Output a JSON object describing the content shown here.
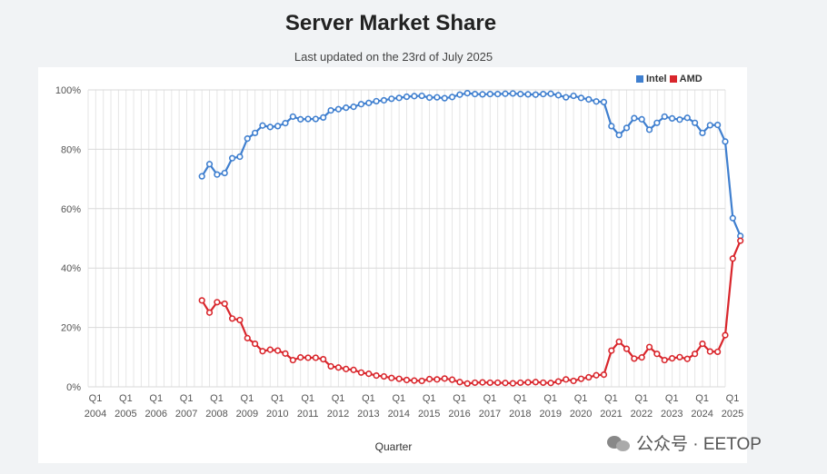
{
  "chart_data": {
    "type": "line",
    "title": "Server Market Share",
    "subtitle": "Last updated on the 23rd of July 2025",
    "xlabel": "Quarter",
    "ylabel": "",
    "ylim": [
      0,
      100
    ],
    "yticks": [
      "0%",
      "20%",
      "40%",
      "60%",
      "80%",
      "100%"
    ],
    "xticks": [
      {
        "q": "Q1",
        "year": "2004"
      },
      {
        "q": "Q1",
        "year": "2005"
      },
      {
        "q": "Q1",
        "year": "2006"
      },
      {
        "q": "Q1",
        "year": "2007"
      },
      {
        "q": "Q1",
        "year": "2008"
      },
      {
        "q": "Q1",
        "year": "2009"
      },
      {
        "q": "Q1",
        "year": "2010"
      },
      {
        "q": "Q1",
        "year": "2011"
      },
      {
        "q": "Q1",
        "year": "2012"
      },
      {
        "q": "Q1",
        "year": "2013"
      },
      {
        "q": "Q1",
        "year": "2014"
      },
      {
        "q": "Q1",
        "year": "2015"
      },
      {
        "q": "Q1",
        "year": "2016"
      },
      {
        "q": "Q1",
        "year": "2017"
      },
      {
        "q": "Q1",
        "year": "2018"
      },
      {
        "q": "Q1",
        "year": "2019"
      },
      {
        "q": "Q1",
        "year": "2020"
      },
      {
        "q": "Q1",
        "year": "2021"
      },
      {
        "q": "Q1",
        "year": "2022"
      },
      {
        "q": "Q1",
        "year": "2023"
      },
      {
        "q": "Q1",
        "year": "2024"
      },
      {
        "q": "Q1",
        "year": "2025"
      }
    ],
    "x_start": "Q1 2004",
    "first_data_quarter_index": 15,
    "legend": [
      "Intel",
      "AMD"
    ],
    "legend_position": "top-right",
    "series": [
      {
        "name": "Intel",
        "color": "#3f7fcf",
        "values": [
          70.9,
          75.0,
          71.5,
          72.0,
          77.0,
          77.5,
          83.6,
          85.5,
          88.0,
          87.5,
          87.8,
          88.8,
          91.0,
          90.1,
          90.2,
          90.2,
          90.7,
          93.1,
          93.5,
          94.0,
          94.3,
          95.2,
          95.6,
          96.2,
          96.5,
          97.0,
          97.3,
          97.7,
          97.9,
          98.0,
          97.4,
          97.5,
          97.2,
          97.6,
          98.4,
          98.9,
          98.6,
          98.5,
          98.6,
          98.6,
          98.7,
          98.8,
          98.6,
          98.5,
          98.4,
          98.6,
          98.7,
          98.2,
          97.5,
          98.0,
          97.3,
          96.8,
          96.1,
          95.9,
          87.8,
          84.8,
          87.2,
          90.5,
          90.1,
          86.6,
          88.9,
          91.0,
          90.4,
          90.0,
          90.6,
          88.9,
          85.5,
          88.1,
          88.2,
          82.6,
          56.8,
          50.8
        ]
      },
      {
        "name": "AMD",
        "color": "#d9262c",
        "values": [
          29.1,
          25.0,
          28.5,
          28.0,
          23.0,
          22.5,
          16.4,
          14.5,
          12.0,
          12.5,
          12.2,
          11.2,
          9.0,
          9.9,
          9.8,
          9.8,
          9.3,
          6.9,
          6.5,
          6.0,
          5.7,
          4.8,
          4.4,
          3.8,
          3.5,
          3.0,
          2.7,
          2.3,
          2.1,
          2.0,
          2.6,
          2.5,
          2.8,
          2.4,
          1.6,
          1.1,
          1.4,
          1.5,
          1.4,
          1.4,
          1.3,
          1.2,
          1.4,
          1.5,
          1.6,
          1.4,
          1.3,
          1.8,
          2.5,
          2.0,
          2.7,
          3.2,
          3.9,
          4.1,
          12.2,
          15.2,
          12.8,
          9.5,
          9.9,
          13.4,
          11.1,
          9.0,
          9.6,
          10.0,
          9.4,
          11.1,
          14.5,
          11.9,
          11.8,
          17.4,
          43.2,
          49.2
        ]
      }
    ]
  },
  "legend": {
    "intel_label": "Intel",
    "amd_label": "AMD",
    "intel_color": "#3f7fcf",
    "amd_color": "#d9262c"
  },
  "watermark": {
    "text": "公众号 · EETOP"
  }
}
